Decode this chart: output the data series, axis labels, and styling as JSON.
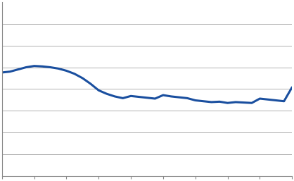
{
  "years": [
    1975,
    1976,
    1977,
    1978,
    1979,
    1980,
    1981,
    1982,
    1983,
    1984,
    1985,
    1986,
    1987,
    1988,
    1989,
    1990,
    1991,
    1992,
    1993,
    1994,
    1995,
    1996,
    1997,
    1998,
    1999,
    2000,
    2001,
    2002,
    2003,
    2004,
    2005,
    2006,
    2007,
    2008,
    2009,
    2010,
    2011
  ],
  "values": [
    73.8,
    74.0,
    74.5,
    75.0,
    75.3,
    75.2,
    75.0,
    74.7,
    74.2,
    73.5,
    72.5,
    71.2,
    69.7,
    68.9,
    68.3,
    67.9,
    68.4,
    68.2,
    68.0,
    67.8,
    68.6,
    68.3,
    68.1,
    67.9,
    67.4,
    67.2,
    67.0,
    67.1,
    66.8,
    67.0,
    66.9,
    66.8,
    67.8,
    67.6,
    67.4,
    67.2,
    70.4
  ],
  "line_color": "#1a4f9f",
  "line_width": 2.2,
  "xlim": [
    1975,
    2011
  ],
  "ylim": [
    50,
    90
  ],
  "ytick_positions": [
    55,
    60,
    65,
    70,
    75,
    80,
    85
  ],
  "xtick_years": [
    1975,
    1979,
    1983,
    1987,
    1991,
    1995,
    1999,
    2003,
    2007,
    2011
  ],
  "background_color": "#ffffff",
  "grid_color": "#b0b0b0",
  "grid_linewidth": 0.7
}
